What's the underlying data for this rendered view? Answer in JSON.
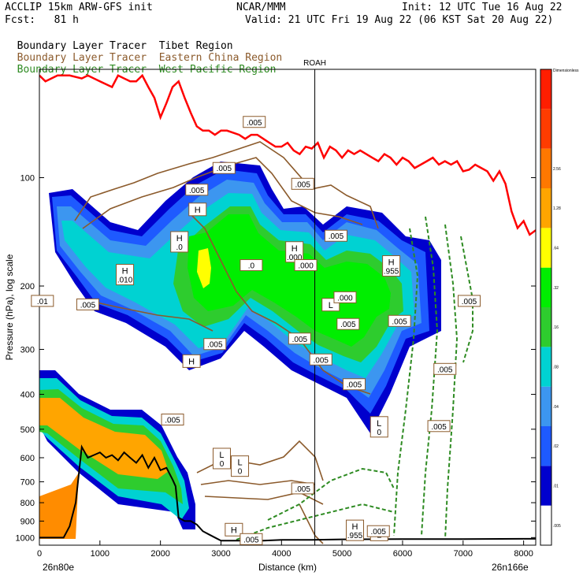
{
  "header": {
    "line1_left": "ACCLIP 15km ARW-GFS init",
    "line1_mid": "NCAR/MMM",
    "line1_right": "Init: 12 UTC Tue 16 Aug 22",
    "line2_left": "Fcst:   81 h",
    "line2_right": "Valid: 21 UTC Fri 19 Aug 22 (06 KST Sat 20 Aug 22)",
    "legend": [
      {
        "label": "Boundary Layer Tracer",
        "region": "Tibet Region",
        "color": "#000000"
      },
      {
        "label": "Boundary Layer Tracer",
        "region": "Eastern China Region",
        "color": "#8B5A2B"
      },
      {
        "label": "Boundary Layer Tracer",
        "region": "West Pacific Region",
        "color": "#2E8B22"
      }
    ]
  },
  "chart_data": {
    "type": "area",
    "title": "",
    "xlabel": "Distance (km)",
    "ylabel": "Pressure (hPa), log scale",
    "y_scale": "log",
    "xlim": [
      0,
      8200
    ],
    "ylim": [
      1050,
      50
    ],
    "x_ticks": [
      0,
      1000,
      2000,
      3000,
      4000,
      5000,
      6000,
      7000,
      8000
    ],
    "y_ticks": [
      100,
      200,
      300,
      400,
      500,
      600,
      700,
      800,
      900,
      1000
    ],
    "x_tick_labels": [
      "0",
      "1000",
      "2000",
      "3000",
      "4000",
      "5000",
      "6000",
      "7000",
      "8000"
    ],
    "y_tick_labels": [
      "100",
      "200",
      "300",
      "400",
      "500",
      "600",
      "700",
      "800",
      "900",
      "1000"
    ],
    "start_point": "26n80e",
    "end_point": "26n166e",
    "vertical_marker": {
      "label": "ROAH",
      "x": 4550
    },
    "colorbar": {
      "colors": [
        "#ffffff",
        "#0000cd",
        "#1e5aff",
        "#3c96f0",
        "#00d2d2",
        "#2ecc2e",
        "#00ee00",
        "#ffff00",
        "#ffa500",
        "#ff7800",
        "#ff3c00",
        "#ff1e00"
      ],
      "labels": [
        ".005",
        ".01",
        ".02",
        ".04",
        ".08",
        ".16",
        ".32",
        ".64",
        "1.28",
        "2.56",
        "Dimensionless"
      ]
    },
    "tropopause_line": {
      "name": "tropopause",
      "color": "#ff0000",
      "x": [
        0,
        100,
        200,
        300,
        500,
        700,
        800,
        900,
        1000,
        1100,
        1200,
        1300,
        1400,
        1500,
        1600,
        1700,
        1800,
        1900,
        2000,
        2100,
        2200,
        2300,
        2400,
        2500,
        2600,
        2700,
        2800,
        2900,
        3000,
        3100,
        3200,
        3300,
        3400,
        3500,
        3600,
        3700,
        3800,
        3900,
        4000,
        4100,
        4200,
        4300,
        4400,
        4500,
        4600,
        4700,
        4800,
        4900,
        5000,
        5100,
        5200,
        5300,
        5400,
        5500,
        5600,
        5700,
        5800,
        5900,
        6000,
        6100,
        6200,
        6300,
        6400,
        6500,
        6600,
        6700,
        6800,
        6900,
        7000,
        7100,
        7200,
        7300,
        7400,
        7500,
        7600,
        7700,
        7800,
        7900,
        8000,
        8100,
        8200
      ],
      "y": [
        52,
        54,
        53,
        52,
        52,
        53,
        52,
        53,
        54,
        55,
        56,
        52,
        53,
        54,
        54,
        52,
        56,
        60,
        68,
        62,
        56,
        54,
        60,
        66,
        72,
        74,
        74,
        76,
        74,
        74,
        75,
        76,
        78,
        76,
        76,
        78,
        80,
        82,
        82,
        80,
        84,
        86,
        82,
        83,
        80,
        88,
        82,
        84,
        88,
        84,
        86,
        84,
        86,
        88,
        90,
        86,
        88,
        92,
        88,
        90,
        94,
        92,
        90,
        88,
        92,
        90,
        92,
        90,
        96,
        95,
        92,
        94,
        96,
        102,
        96,
        104,
        124,
        138,
        132,
        144,
        140
      ]
    },
    "terrain_line": {
      "name": "terrain",
      "color": "#000000",
      "x": [
        0,
        200,
        400,
        500,
        600,
        700,
        800,
        900,
        1000,
        1100,
        1200,
        1300,
        1400,
        1500,
        1600,
        1700,
        1800,
        1900,
        2000,
        2100,
        2200,
        2250,
        2300,
        2400,
        2500,
        2600,
        2700,
        2800,
        2900,
        3000,
        3100,
        3300,
        3500,
        3700,
        4000,
        4500,
        5000,
        6000,
        7000,
        8000,
        8200
      ],
      "y": [
        1000,
        1000,
        1000,
        930,
        800,
        560,
        600,
        590,
        580,
        600,
        590,
        610,
        580,
        600,
        620,
        590,
        640,
        600,
        650,
        640,
        690,
        720,
        880,
        900,
        900,
        920,
        960,
        980,
        1000,
        1020,
        1020,
        1020,
        1020,
        1020,
        1015,
        1015,
        1012,
        1010,
        1010,
        1008,
        1008
      ]
    },
    "field_centers": [
      {
        "label": "H",
        "value": ".010",
        "x": 1400,
        "y": 185
      },
      {
        "label": "H",
        "value": ".0",
        "x": 2300,
        "y": 150
      },
      {
        "label": "H",
        "value": "",
        "x": 2600,
        "y": 125
      },
      {
        "label": "H",
        "value": "",
        "x": 2500,
        "y": 330
      },
      {
        "label": "H",
        "value": ".000",
        "x": 4200,
        "y": 160
      },
      {
        "label": "H",
        "value": ".955",
        "x": 5800,
        "y": 175
      },
      {
        "label": "H",
        "value": ".955",
        "x": 5200,
        "y": 950
      },
      {
        "label": "L",
        "value": "0",
        "x": 3000,
        "y": 600
      },
      {
        "label": "L",
        "value": "0",
        "x": 3300,
        "y": 630
      },
      {
        "label": "L",
        "value": "0",
        "x": 5600,
        "y": 490
      },
      {
        "label": "L",
        "value": "",
        "x": 4800,
        "y": 230
      },
      {
        "label": "L",
        "value": "",
        "x": 5600,
        "y": 1000
      },
      {
        "label": "H",
        "value": "",
        "x": 3200,
        "y": 970
      }
    ],
    "contour_labels": [
      {
        "text": ".005",
        "x": 3550,
        "y": 70
      },
      {
        "text": ".005",
        "x": 3050,
        "y": 94
      },
      {
        "text": ".005",
        "x": 4350,
        "y": 104
      },
      {
        "text": ".005",
        "x": 2600,
        "y": 108
      },
      {
        "text": ".005",
        "x": 4900,
        "y": 145
      },
      {
        "text": ".005",
        "x": 800,
        "y": 225
      },
      {
        "text": ".005",
        "x": 2900,
        "y": 290
      },
      {
        "text": ".005",
        "x": 4300,
        "y": 280
      },
      {
        "text": ".005",
        "x": 4650,
        "y": 320
      },
      {
        "text": ".005",
        "x": 5100,
        "y": 255
      },
      {
        "text": ".005",
        "x": 5950,
        "y": 250
      },
      {
        "text": ".005",
        "x": 7100,
        "y": 220
      },
      {
        "text": ".005",
        "x": 6700,
        "y": 340
      },
      {
        "text": ".005",
        "x": 6600,
        "y": 490
      },
      {
        "text": ".005",
        "x": 2200,
        "y": 470
      },
      {
        "text": ".005",
        "x": 4350,
        "y": 730
      },
      {
        "text": ".005",
        "x": 5600,
        "y": 960
      },
      {
        "text": ".005",
        "x": 3500,
        "y": 1010
      },
      {
        "text": ".0",
        "x": 3500,
        "y": 175
      },
      {
        "text": ".01",
        "x": 50,
        "y": 220
      },
      {
        "text": ".000",
        "x": 5050,
        "y": 215
      },
      {
        "text": ".000",
        "x": 4400,
        "y": 175
      },
      {
        "text": ".005",
        "x": 5200,
        "y": 375
      }
    ]
  }
}
